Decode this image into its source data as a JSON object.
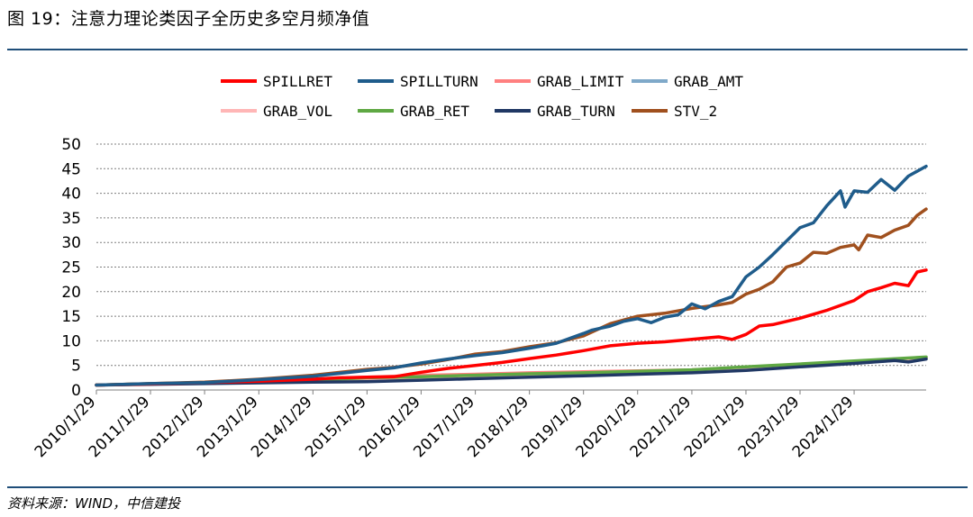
{
  "figure": {
    "title": "图 19：注意力理论类因子全历史多空月频净值",
    "source": "资料来源：WIND，中信建投"
  },
  "chart_data": {
    "type": "line",
    "ylim": [
      0,
      50
    ],
    "yticks": [
      0,
      5,
      10,
      15,
      20,
      25,
      30,
      35,
      40,
      45,
      50
    ],
    "xlim": [
      "2010-01-29",
      "2025-05-29"
    ],
    "xticks": [
      "2010/1/29",
      "2011/1/29",
      "2012/1/29",
      "2013/1/29",
      "2014/1/29",
      "2015/1/29",
      "2016/1/29",
      "2017/1/29",
      "2018/1/29",
      "2019/1/29",
      "2020/1/29",
      "2021/1/29",
      "2022/1/29",
      "2023/1/29",
      "2024/1/29"
    ],
    "grid": "horizontal",
    "legend_position": "top",
    "series": [
      {
        "name": "SPILLRET",
        "color": "#ff0000",
        "points": [
          [
            "2010-01-29",
            1.0
          ],
          [
            "2011-01-29",
            1.2
          ],
          [
            "2012-01-29",
            1.5
          ],
          [
            "2013-01-29",
            1.8
          ],
          [
            "2014-01-29",
            2.2
          ],
          [
            "2014-07-29",
            2.5
          ],
          [
            "2015-01-29",
            2.6
          ],
          [
            "2015-07-29",
            2.7
          ],
          [
            "2016-01-29",
            3.6
          ],
          [
            "2016-07-29",
            4.4
          ],
          [
            "2017-01-29",
            5.0
          ],
          [
            "2017-07-29",
            5.6
          ],
          [
            "2018-01-29",
            6.4
          ],
          [
            "2018-07-29",
            7.1
          ],
          [
            "2019-01-29",
            8.0
          ],
          [
            "2019-07-29",
            9.0
          ],
          [
            "2020-01-29",
            9.5
          ],
          [
            "2020-07-29",
            9.8
          ],
          [
            "2020-12-29",
            10.2
          ],
          [
            "2021-01-29",
            10.3
          ],
          [
            "2021-07-29",
            10.8
          ],
          [
            "2021-10-29",
            10.3
          ],
          [
            "2022-01-29",
            11.3
          ],
          [
            "2022-04-29",
            13.0
          ],
          [
            "2022-07-29",
            13.3
          ],
          [
            "2023-01-29",
            14.6
          ],
          [
            "2023-07-29",
            16.2
          ],
          [
            "2024-01-29",
            18.2
          ],
          [
            "2024-04-29",
            20.0
          ],
          [
            "2024-07-29",
            20.8
          ],
          [
            "2024-10-29",
            21.7
          ],
          [
            "2025-01-29",
            21.2
          ],
          [
            "2025-03-29",
            24.0
          ],
          [
            "2025-05-29",
            24.4
          ]
        ]
      },
      {
        "name": "SPILLTURN",
        "color": "#1f5c8b",
        "points": [
          [
            "2010-01-29",
            1.0
          ],
          [
            "2011-01-29",
            1.3
          ],
          [
            "2012-01-29",
            1.5
          ],
          [
            "2013-01-29",
            2.1
          ],
          [
            "2014-01-29",
            2.8
          ],
          [
            "2015-01-29",
            4.0
          ],
          [
            "2015-07-29",
            4.5
          ],
          [
            "2016-01-29",
            5.5
          ],
          [
            "2016-07-29",
            6.3
          ],
          [
            "2017-01-29",
            7.0
          ],
          [
            "2017-07-29",
            7.6
          ],
          [
            "2018-01-29",
            8.5
          ],
          [
            "2018-07-29",
            9.5
          ],
          [
            "2019-01-29",
            11.5
          ],
          [
            "2019-03-29",
            12.2
          ],
          [
            "2019-07-29",
            13.0
          ],
          [
            "2019-10-29",
            14.0
          ],
          [
            "2020-01-29",
            14.5
          ],
          [
            "2020-04-29",
            13.7
          ],
          [
            "2020-07-29",
            14.8
          ],
          [
            "2020-10-29",
            15.3
          ],
          [
            "2021-01-29",
            17.5
          ],
          [
            "2021-04-29",
            16.5
          ],
          [
            "2021-07-29",
            18.0
          ],
          [
            "2021-10-29",
            19.0
          ],
          [
            "2022-01-29",
            23.0
          ],
          [
            "2022-04-29",
            25.0
          ],
          [
            "2022-07-29",
            27.5
          ],
          [
            "2023-01-29",
            33.0
          ],
          [
            "2023-04-29",
            34.0
          ],
          [
            "2023-07-29",
            37.5
          ],
          [
            "2023-10-29",
            40.5
          ],
          [
            "2023-11-29",
            37.2
          ],
          [
            "2024-01-29",
            40.5
          ],
          [
            "2024-04-29",
            40.2
          ],
          [
            "2024-07-29",
            42.8
          ],
          [
            "2024-10-29",
            40.6
          ],
          [
            "2025-01-29",
            43.5
          ],
          [
            "2025-05-29",
            45.5
          ]
        ]
      },
      {
        "name": "GRAB_LIMIT",
        "color": "#ff8080",
        "points": [
          [
            "2010-01-29",
            1.0
          ],
          [
            "2012-01-29",
            1.5
          ],
          [
            "2014-01-29",
            2.2
          ],
          [
            "2015-01-29",
            2.6
          ],
          [
            "2016-01-29",
            3.0
          ],
          [
            "2017-01-29",
            3.2
          ],
          [
            "2018-01-29",
            3.5
          ],
          [
            "2019-01-29",
            3.7
          ],
          [
            "2020-01-29",
            3.9
          ],
          [
            "2021-01-29",
            4.1
          ],
          [
            "2022-01-29",
            4.6
          ],
          [
            "2023-01-29",
            5.2
          ],
          [
            "2024-01-29",
            5.8
          ],
          [
            "2025-05-29",
            6.6
          ]
        ]
      },
      {
        "name": "GRAB_AMT",
        "color": "#7fa9c9",
        "points": [
          [
            "2010-01-29",
            1.0
          ],
          [
            "2012-01-29",
            1.4
          ],
          [
            "2014-01-29",
            1.9
          ],
          [
            "2015-01-29",
            2.2
          ],
          [
            "2016-01-29",
            2.5
          ],
          [
            "2017-01-29",
            2.8
          ],
          [
            "2018-01-29",
            3.0
          ],
          [
            "2019-01-29",
            3.3
          ],
          [
            "2020-01-29",
            3.6
          ],
          [
            "2021-01-29",
            3.8
          ],
          [
            "2022-01-29",
            4.3
          ],
          [
            "2023-01-29",
            4.9
          ],
          [
            "2024-01-29",
            5.5
          ],
          [
            "2025-05-29",
            6.4
          ]
        ]
      },
      {
        "name": "GRAB_VOL",
        "color": "#ffb6b6",
        "points": [
          [
            "2010-01-29",
            1.0
          ],
          [
            "2012-01-29",
            1.5
          ],
          [
            "2014-01-29",
            2.0
          ],
          [
            "2015-01-29",
            2.3
          ],
          [
            "2016-01-29",
            2.6
          ],
          [
            "2017-01-29",
            2.9
          ],
          [
            "2018-01-29",
            3.1
          ],
          [
            "2019-01-29",
            3.4
          ],
          [
            "2020-01-29",
            3.6
          ],
          [
            "2021-01-29",
            3.9
          ],
          [
            "2022-01-29",
            4.4
          ],
          [
            "2023-01-29",
            5.0
          ],
          [
            "2024-01-29",
            5.6
          ],
          [
            "2025-05-29",
            6.5
          ]
        ]
      },
      {
        "name": "GRAB_RET",
        "color": "#5fa843",
        "points": [
          [
            "2010-01-29",
            1.0
          ],
          [
            "2012-01-29",
            1.5
          ],
          [
            "2014-01-29",
            2.0
          ],
          [
            "2015-01-29",
            2.5
          ],
          [
            "2016-01-29",
            2.7
          ],
          [
            "2017-01-29",
            3.0
          ],
          [
            "2018-01-29",
            3.3
          ],
          [
            "2019-01-29",
            3.5
          ],
          [
            "2020-01-29",
            3.8
          ],
          [
            "2021-01-29",
            4.1
          ],
          [
            "2022-01-29",
            4.7
          ],
          [
            "2023-01-29",
            5.3
          ],
          [
            "2024-01-29",
            5.9
          ],
          [
            "2025-05-29",
            6.7
          ]
        ]
      },
      {
        "name": "GRAB_TURN",
        "color": "#203864",
        "points": [
          [
            "2010-01-29",
            1.0
          ],
          [
            "2012-01-29",
            1.3
          ],
          [
            "2014-01-29",
            1.6
          ],
          [
            "2015-01-29",
            1.7
          ],
          [
            "2016-01-29",
            2.0
          ],
          [
            "2017-01-29",
            2.3
          ],
          [
            "2018-01-29",
            2.6
          ],
          [
            "2019-01-29",
            2.9
          ],
          [
            "2020-01-29",
            3.2
          ],
          [
            "2021-01-29",
            3.5
          ],
          [
            "2022-01-29",
            4.0
          ],
          [
            "2023-01-29",
            4.7
          ],
          [
            "2024-01-29",
            5.4
          ],
          [
            "2024-10-29",
            6.0
          ],
          [
            "2025-01-29",
            5.7
          ],
          [
            "2025-05-29",
            6.3
          ]
        ]
      },
      {
        "name": "STV_2",
        "color": "#a0501e",
        "points": [
          [
            "2010-01-29",
            1.0
          ],
          [
            "2011-01-29",
            1.3
          ],
          [
            "2012-01-29",
            1.6
          ],
          [
            "2013-01-29",
            2.2
          ],
          [
            "2014-01-29",
            3.0
          ],
          [
            "2015-01-29",
            4.2
          ],
          [
            "2015-07-29",
            4.6
          ],
          [
            "2016-01-29",
            5.3
          ],
          [
            "2016-07-29",
            6.2
          ],
          [
            "2017-01-29",
            7.3
          ],
          [
            "2017-07-29",
            7.8
          ],
          [
            "2018-01-29",
            8.8
          ],
          [
            "2018-07-29",
            9.6
          ],
          [
            "2019-01-29",
            11.0
          ],
          [
            "2019-07-29",
            13.5
          ],
          [
            "2020-01-29",
            15.0
          ],
          [
            "2020-07-29",
            15.6
          ],
          [
            "2021-01-29",
            16.6
          ],
          [
            "2021-07-29",
            17.3
          ],
          [
            "2021-10-29",
            17.8
          ],
          [
            "2022-01-29",
            19.5
          ],
          [
            "2022-04-29",
            20.5
          ],
          [
            "2022-07-29",
            22.0
          ],
          [
            "2022-10-29",
            25.0
          ],
          [
            "2023-01-29",
            25.8
          ],
          [
            "2023-04-29",
            28.0
          ],
          [
            "2023-07-29",
            27.8
          ],
          [
            "2023-10-29",
            29.0
          ],
          [
            "2024-01-29",
            29.5
          ],
          [
            "2024-02-29",
            28.5
          ],
          [
            "2024-04-29",
            31.5
          ],
          [
            "2024-07-29",
            31.0
          ],
          [
            "2024-10-29",
            32.5
          ],
          [
            "2025-01-29",
            33.5
          ],
          [
            "2025-03-29",
            35.5
          ],
          [
            "2025-05-29",
            36.8
          ]
        ]
      }
    ]
  }
}
